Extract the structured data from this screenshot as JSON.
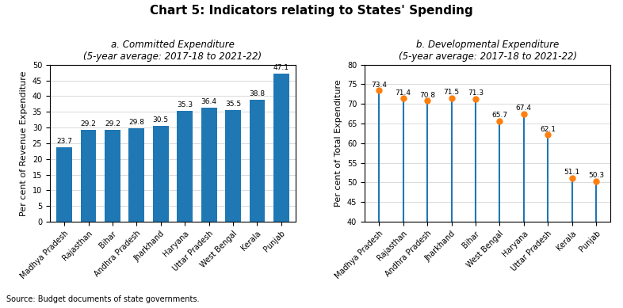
{
  "title": "Chart 5: Indicators relating to States' Spending",
  "source": "Source: Budget documents of state governments.",
  "chart_data": [
    {
      "type": "bar",
      "title": "a. Committed Expenditure\n(5-year average: 2017-18 to 2021-22)",
      "categories": [
        "Madhya Pradesh",
        "Rajasthan",
        "Bihar",
        "Andhra Pradesh",
        "Jharkhand",
        "Haryana",
        "Uttar Pradesh",
        "West Bengal",
        "Kerala",
        "Punjab"
      ],
      "values": [
        23.7,
        29.2,
        29.2,
        29.8,
        30.5,
        35.3,
        36.4,
        35.5,
        38.8,
        47.1
      ],
      "ylabel": "Per cent of Revenue Expenditure",
      "ylim": [
        0,
        50
      ],
      "yticks": [
        0,
        5,
        10,
        15,
        20,
        25,
        30,
        35,
        40,
        45,
        50
      ],
      "grid": true,
      "data_labels": true
    },
    {
      "type": "lollipop",
      "title": "b. Developmental Expenditure\n(5-year average: 2017-18 to 2021-22)",
      "categories": [
        "Madhya Pradesh",
        "Rajasthan",
        "Andhra Pradesh",
        "Jharkhand",
        "Bihar",
        "West Bengal",
        "Haryana",
        "Uttar Pradesh",
        "Kerala",
        "Punjab"
      ],
      "values": [
        73.4,
        71.4,
        70.8,
        71.5,
        71.3,
        65.7,
        67.4,
        62.1,
        51.1,
        50.3
      ],
      "ylabel": "Per cent of Total Expenditure",
      "ylim": [
        40,
        80
      ],
      "yticks": [
        40,
        45,
        50,
        55,
        60,
        65,
        70,
        75,
        80
      ],
      "grid": true,
      "data_labels": true
    }
  ]
}
